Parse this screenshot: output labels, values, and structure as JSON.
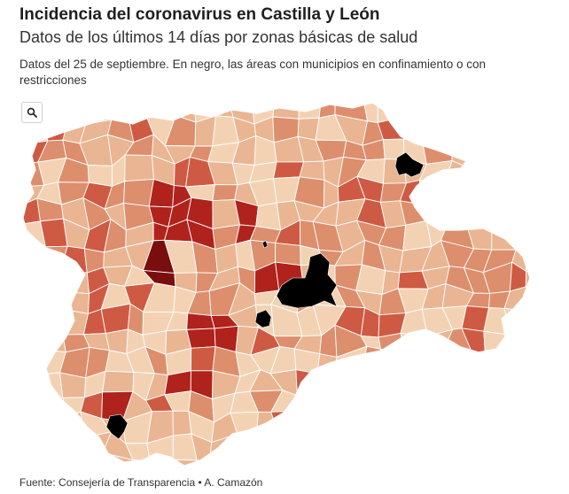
{
  "header": {
    "title": "Incidencia del coronavirus en Castilla y León",
    "subtitle": "Datos de los últimos 14 días por zonas básicas de salud",
    "description": "Datos del 25 de septiembre. En negro, las áreas con municipios en confinamiento o con restricciones"
  },
  "controls": {
    "zoom_icon": "search-icon"
  },
  "map": {
    "region": "Castilla y León",
    "colors": {
      "very_low": "#f3d2b4",
      "low": "#eab592",
      "medium": "#dd8e6c",
      "high": "#cf5a44",
      "very_high": "#b0221c",
      "extreme": "#7a0d0e",
      "restricted": "#000000",
      "border": "#ffffff"
    }
  },
  "footer": {
    "source": "Fuente: Consejería de Transparencia • A. Camazón"
  }
}
